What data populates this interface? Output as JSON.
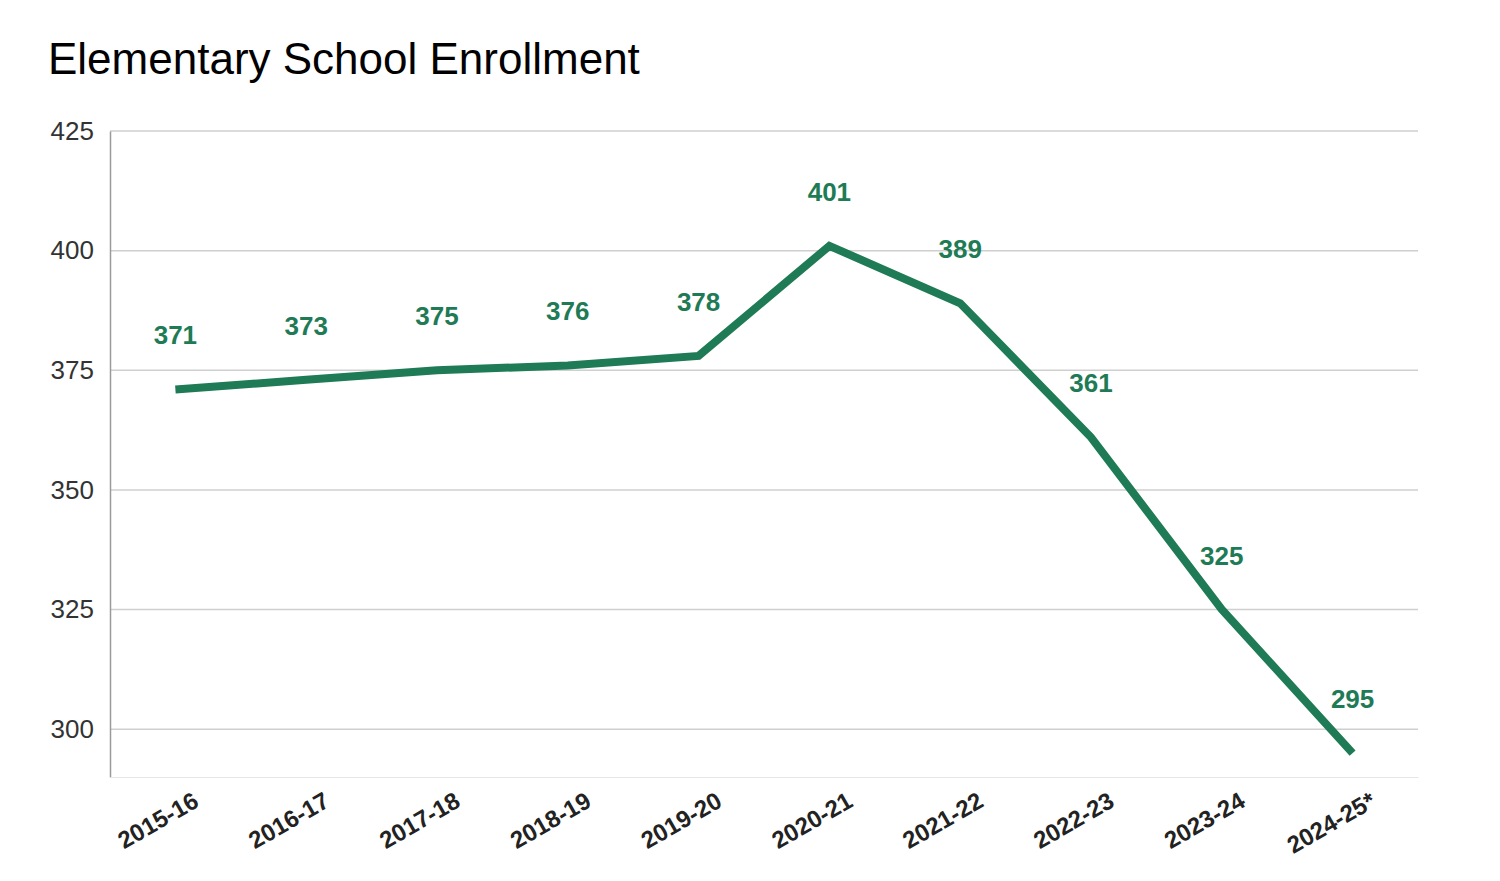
{
  "chart_data": {
    "type": "line",
    "title": "Elementary School Enrollment",
    "categories": [
      "2015-16",
      "2016-17",
      "2017-18",
      "2018-19",
      "2019-20",
      "2020-21",
      "2021-22",
      "2022-23",
      "2023-24",
      "2024-25*"
    ],
    "values": [
      371,
      373,
      375,
      376,
      378,
      401,
      389,
      361,
      325,
      295
    ],
    "color": "#1e7b55",
    "ylim": [
      290,
      425
    ],
    "yticks": [
      300,
      325,
      350,
      375,
      400,
      425
    ],
    "grid": true,
    "data_labels": true
  }
}
